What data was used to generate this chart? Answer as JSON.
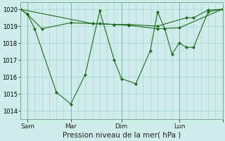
{
  "title": "Pression niveau de la mer( hPa )",
  "bg_color": "#ceecea",
  "line_color": "#1f6b1f",
  "grid_color": "#aaceca",
  "spine_color": "#7aaa9a",
  "ylim": [
    1013.5,
    1020.4
  ],
  "yticks": [
    1014,
    1015,
    1016,
    1017,
    1018,
    1019,
    1020
  ],
  "xlim": [
    0,
    14.0
  ],
  "xtick_positions": [
    0.5,
    3.5,
    7.0,
    11.0,
    14.0
  ],
  "xtick_labels": [
    "Sam",
    "Mar",
    "Dim",
    "Lun",
    ""
  ],
  "vline_positions": [
    0.5,
    3.5,
    7.0,
    11.0,
    14.0
  ],
  "series1_x": [
    0.0,
    0.5,
    1.5,
    3.5,
    5.0,
    5.5,
    6.5,
    7.5,
    9.5,
    11.5,
    12.0,
    13.0,
    14.0
  ],
  "series1_y": [
    1020.0,
    1019.7,
    1018.85,
    1019.2,
    1019.15,
    1019.15,
    1019.1,
    1019.1,
    1019.0,
    1019.5,
    1019.5,
    1019.95,
    1020.0
  ],
  "series2_x": [
    0.0,
    0.5,
    1.0,
    2.5,
    3.5,
    4.5,
    5.5,
    6.5,
    7.0,
    8.0,
    9.0,
    9.5,
    10.0,
    10.5,
    11.0,
    11.5,
    12.0,
    13.0,
    14.0
  ],
  "series2_y": [
    1020.0,
    1019.7,
    1018.85,
    1015.1,
    1014.4,
    1016.15,
    1019.9,
    1017.0,
    1015.9,
    1015.6,
    1017.55,
    1019.85,
    1018.85,
    1017.35,
    1018.0,
    1017.75,
    1017.75,
    1019.85,
    1020.0
  ],
  "series3_x": [
    0.0,
    5.0,
    6.5,
    7.5,
    9.5,
    11.0,
    14.0
  ],
  "series3_y": [
    1020.0,
    1019.15,
    1019.1,
    1019.05,
    1018.85,
    1018.9,
    1020.0
  ]
}
